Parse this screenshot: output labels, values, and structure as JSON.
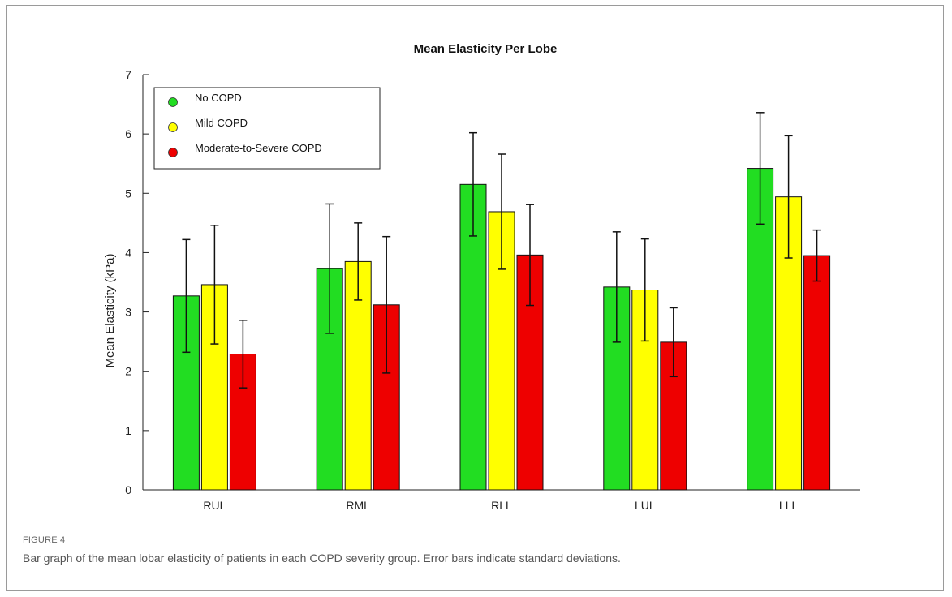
{
  "chart_data": {
    "type": "bar",
    "title": "Mean Elasticity Per Lobe",
    "xlabel": "",
    "ylabel": "Mean Elasticity (kPa)",
    "ylim": [
      0,
      7
    ],
    "yticks": [
      0,
      1,
      2,
      3,
      4,
      5,
      6,
      7
    ],
    "categories": [
      "RUL",
      "RML",
      "RLL",
      "LUL",
      "LLL"
    ],
    "series": [
      {
        "name": "No COPD",
        "color": "#22dd22",
        "values": [
          3.27,
          3.73,
          5.15,
          3.42,
          5.42
        ],
        "sd": [
          0.95,
          1.09,
          0.87,
          0.93,
          0.94
        ]
      },
      {
        "name": "Mild COPD",
        "color": "#ffff00",
        "values": [
          3.46,
          3.85,
          4.69,
          3.37,
          4.94
        ],
        "sd": [
          1.0,
          0.65,
          0.97,
          0.86,
          1.03
        ]
      },
      {
        "name": "Moderate-to-Severe COPD",
        "color": "#ee0000",
        "values": [
          2.29,
          3.12,
          3.96,
          2.49,
          3.95
        ],
        "sd": [
          0.57,
          1.15,
          0.85,
          0.58,
          0.43
        ]
      }
    ],
    "legend_position": "top-left",
    "grid": false
  },
  "caption": {
    "label": "FIGURE 4",
    "text": "Bar graph of the mean lobar elasticity of patients in each COPD severity group. Error bars indicate standard deviations."
  }
}
